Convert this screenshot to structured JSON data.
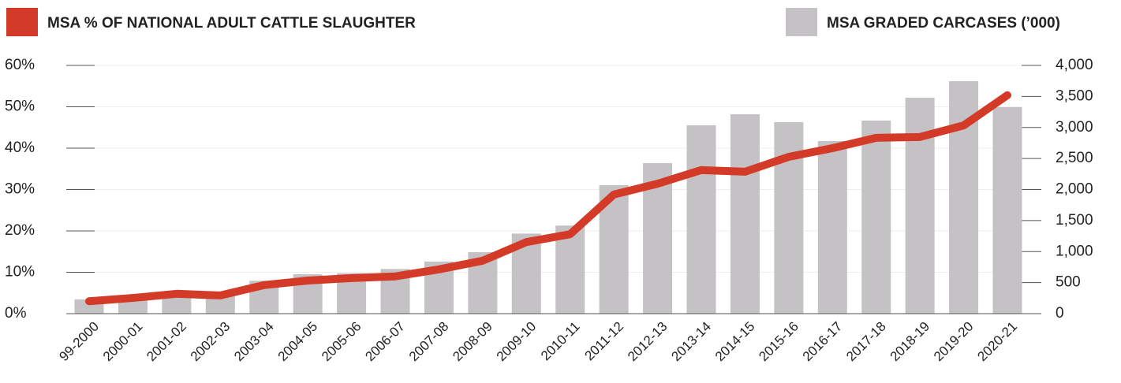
{
  "chart_data": {
    "type": "bar_line",
    "categories": [
      "99-2000",
      "2000-01",
      "2001-02",
      "2002-03",
      "2003-04",
      "2004-05",
      "2005-06",
      "2006-07",
      "2007-08",
      "2008-09",
      "2009-10",
      "2010-11",
      "2011-12",
      "2012-13",
      "2013-14",
      "2014-15",
      "2015-16",
      "2016-17",
      "2017-18",
      "2018-19",
      "2019-20",
      "2020-21"
    ],
    "series": [
      {
        "name": "MSA % OF NATIONAL ADULT CATTLE SLAUGHTER",
        "color": "#d43a28",
        "type": "line",
        "axis": "y",
        "values": [
          3.0,
          3.8,
          4.8,
          4.4,
          6.9,
          8.0,
          8.6,
          9.0,
          10.7,
          12.8,
          17.3,
          19.2,
          28.8,
          31.4,
          34.7,
          34.3,
          37.9,
          40.0,
          42.5,
          42.7,
          45.5,
          52.8
        ]
      },
      {
        "name": "MSA GRADED CARCASES (’000)",
        "color": "#c4c2c4",
        "type": "bar",
        "axis": "y2",
        "values": [
          230,
          260,
          330,
          330,
          530,
          635,
          650,
          720,
          840,
          990,
          1290,
          1420,
          2070,
          2425,
          3035,
          3213,
          3086,
          2781,
          3111,
          3479,
          3746,
          3327
        ]
      }
    ],
    "ylim": [
      0,
      60
    ],
    "yticks": [
      {
        "value": 0,
        "label": "0%"
      },
      {
        "value": 10,
        "label": "10%"
      },
      {
        "value": 20,
        "label": "20%"
      },
      {
        "value": 30,
        "label": "30%"
      },
      {
        "value": 40,
        "label": "40%"
      },
      {
        "value": 50,
        "label": "50%"
      },
      {
        "value": 60,
        "label": "60%"
      }
    ],
    "y2lim": [
      0,
      4000
    ],
    "y2ticks": [
      0,
      500,
      {
        "value": 1000,
        "label": "1,000"
      },
      {
        "value": 1500,
        "label": "1,500"
      },
      {
        "value": 2000,
        "label": "2,000"
      },
      {
        "value": 2500,
        "label": "2,500"
      },
      {
        "value": 3000,
        "label": "3,000"
      },
      {
        "value": 3500,
        "label": "3,500"
      },
      {
        "value": 4000,
        "label": "4,000"
      }
    ],
    "grid": true
  }
}
